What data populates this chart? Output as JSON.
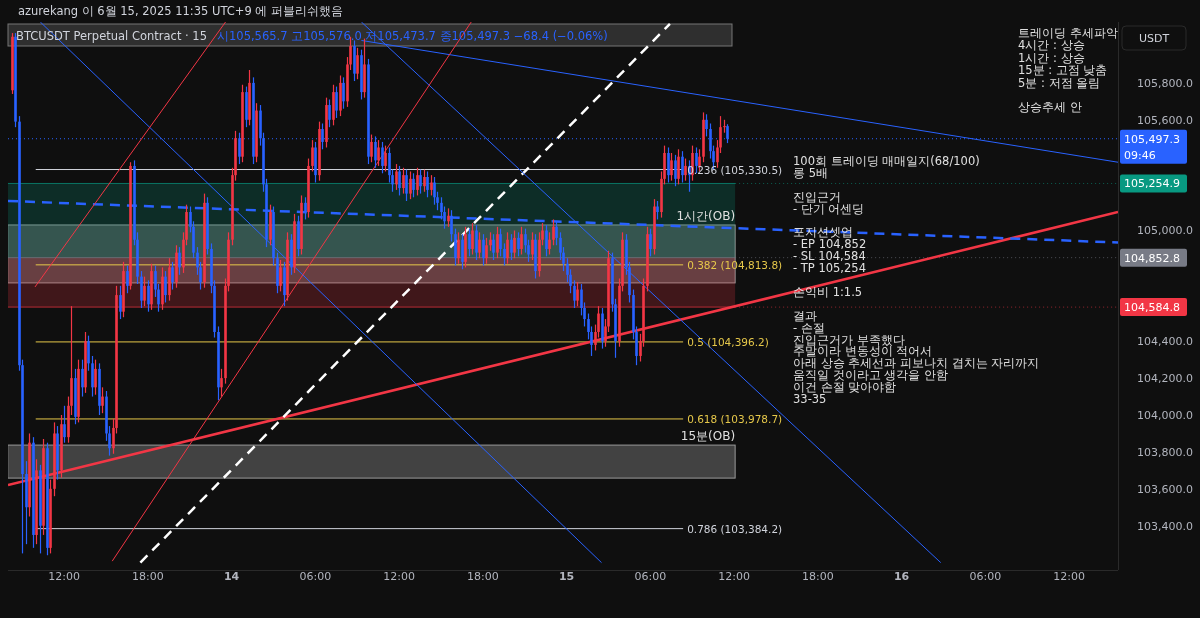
{
  "chart_data": {
    "type": "candlestick",
    "title": "BTCUSDT Perpetual Contract · 15",
    "subtitle": "시105,565.7 고105,576.0 저105,473.7 종105,497.3 −68.4 (−0.06%)",
    "ylabel": "USDT",
    "xlim": [
      "2025-06-13T07:59",
      "2025-06-16T15:30"
    ],
    "ylim": [
      103160,
      106130
    ],
    "xticks": [
      {
        "value": "2025-06-13T12:00",
        "label": "12:00"
      },
      {
        "value": "2025-06-13T18:00",
        "label": "18:00"
      },
      {
        "value": "2025-06-14T00:00",
        "label": "14"
      },
      {
        "value": "2025-06-14T06:00",
        "label": "06:00"
      },
      {
        "value": "2025-06-14T12:00",
        "label": "12:00"
      },
      {
        "value": "2025-06-14T18:00",
        "label": "18:00"
      },
      {
        "value": "2025-06-15T00:00",
        "label": "15"
      },
      {
        "value": "2025-06-15T06:00",
        "label": "06:00"
      },
      {
        "value": "2025-06-15T12:00",
        "label": "12:00"
      },
      {
        "value": "2025-06-15T18:00",
        "label": "18:00"
      },
      {
        "value": "2025-06-16T00:00",
        "label": "16"
      },
      {
        "value": "2025-06-16T06:00",
        "label": "06:00"
      },
      {
        "value": "2025-06-16T12:00",
        "label": "12:00"
      }
    ],
    "yticks": [
      {
        "value": 103400,
        "label": "103,400.0"
      },
      {
        "value": 103600,
        "label": "103,600.0"
      },
      {
        "value": 103800,
        "label": "103,800.0"
      },
      {
        "value": 104000,
        "label": "104,000.0"
      },
      {
        "value": 104200,
        "label": "104,200.0"
      },
      {
        "value": 104400,
        "label": "104,400.0"
      },
      {
        "value": 105000,
        "label": "105,000.0"
      },
      {
        "value": 105600,
        "label": "105,600.0"
      },
      {
        "value": 105800,
        "label": "105,800.0"
      }
    ],
    "x": [
      "2025-06-13T08:15",
      "2025-06-13T08:30",
      "2025-06-13T08:45",
      "2025-06-13T09:00",
      "2025-06-13T09:15",
      "2025-06-13T09:30",
      "2025-06-13T09:45",
      "2025-06-13T10:00",
      "2025-06-13T10:15",
      "2025-06-13T10:30",
      "2025-06-13T10:45",
      "2025-06-13T11:00",
      "2025-06-13T11:15",
      "2025-06-13T11:30",
      "2025-06-13T11:45",
      "2025-06-13T12:00",
      "2025-06-13T12:15",
      "2025-06-13T12:30",
      "2025-06-13T12:45",
      "2025-06-13T13:00",
      "2025-06-13T13:15",
      "2025-06-13T13:30",
      "2025-06-13T13:45",
      "2025-06-13T14:00",
      "2025-06-13T14:15",
      "2025-06-13T14:30",
      "2025-06-13T14:45",
      "2025-06-13T15:00",
      "2025-06-13T15:15",
      "2025-06-13T15:30",
      "2025-06-13T15:45",
      "2025-06-13T16:00",
      "2025-06-13T16:15",
      "2025-06-13T16:30",
      "2025-06-13T16:45",
      "2025-06-13T17:00",
      "2025-06-13T17:15",
      "2025-06-13T17:30",
      "2025-06-13T17:45",
      "2025-06-13T18:00",
      "2025-06-13T18:15",
      "2025-06-13T18:30",
      "2025-06-13T18:45",
      "2025-06-13T19:00",
      "2025-06-13T19:15",
      "2025-06-13T19:30",
      "2025-06-13T19:45",
      "2025-06-13T20:00",
      "2025-06-13T20:15",
      "2025-06-13T20:30",
      "2025-06-13T20:45",
      "2025-06-13T21:00",
      "2025-06-13T21:15",
      "2025-06-13T21:30",
      "2025-06-13T21:45",
      "2025-06-13T22:00",
      "2025-06-13T22:15",
      "2025-06-13T22:30",
      "2025-06-13T22:45",
      "2025-06-13T23:00",
      "2025-06-13T23:15",
      "2025-06-13T23:30",
      "2025-06-13T23:45",
      "2025-06-14T00:00",
      "2025-06-14T00:15",
      "2025-06-14T00:30",
      "2025-06-14T00:45",
      "2025-06-14T01:00",
      "2025-06-14T01:15",
      "2025-06-14T01:30",
      "2025-06-14T01:45",
      "2025-06-14T02:00",
      "2025-06-14T02:15",
      "2025-06-14T02:30",
      "2025-06-14T02:45",
      "2025-06-14T03:00",
      "2025-06-14T03:15",
      "2025-06-14T03:30",
      "2025-06-14T03:45",
      "2025-06-14T04:00",
      "2025-06-14T04:15",
      "2025-06-14T04:30",
      "2025-06-14T04:45",
      "2025-06-14T05:00",
      "2025-06-14T05:15",
      "2025-06-14T05:30",
      "2025-06-14T05:45",
      "2025-06-14T06:00",
      "2025-06-14T06:15",
      "2025-06-14T06:30",
      "2025-06-14T06:45",
      "2025-06-14T07:00",
      "2025-06-14T07:15",
      "2025-06-14T07:30",
      "2025-06-14T07:45",
      "2025-06-14T08:00",
      "2025-06-14T08:15",
      "2025-06-14T08:30",
      "2025-06-14T08:45",
      "2025-06-14T09:00",
      "2025-06-14T09:15",
      "2025-06-14T09:30",
      "2025-06-14T09:45",
      "2025-06-14T10:00",
      "2025-06-14T10:15",
      "2025-06-14T10:30",
      "2025-06-14T10:45",
      "2025-06-14T11:00",
      "2025-06-14T11:15",
      "2025-06-14T11:30",
      "2025-06-14T11:45",
      "2025-06-14T12:00",
      "2025-06-14T12:15",
      "2025-06-14T12:30",
      "2025-06-14T12:45",
      "2025-06-14T13:00",
      "2025-06-14T13:15",
      "2025-06-14T13:30",
      "2025-06-14T13:45",
      "2025-06-14T14:00",
      "2025-06-14T14:15",
      "2025-06-14T14:30",
      "2025-06-14T14:45",
      "2025-06-14T15:00",
      "2025-06-14T15:15",
      "2025-06-14T15:30",
      "2025-06-14T15:45",
      "2025-06-14T16:00",
      "2025-06-14T16:15",
      "2025-06-14T16:30",
      "2025-06-14T16:45",
      "2025-06-14T17:00",
      "2025-06-14T17:15",
      "2025-06-14T17:30",
      "2025-06-14T17:45",
      "2025-06-14T18:00",
      "2025-06-14T18:15",
      "2025-06-14T18:30",
      "2025-06-14T18:45",
      "2025-06-14T19:00",
      "2025-06-14T19:15",
      "2025-06-14T19:30",
      "2025-06-14T19:45",
      "2025-06-14T20:00",
      "2025-06-14T20:15",
      "2025-06-14T20:30",
      "2025-06-14T20:45",
      "2025-06-14T21:00",
      "2025-06-14T21:15",
      "2025-06-14T21:30",
      "2025-06-14T21:45",
      "2025-06-14T22:00",
      "2025-06-14T22:15",
      "2025-06-14T22:30",
      "2025-06-14T22:45",
      "2025-06-14T23:00",
      "2025-06-14T23:15",
      "2025-06-14T23:30",
      "2025-06-14T23:45",
      "2025-06-15T00:00",
      "2025-06-15T00:15",
      "2025-06-15T00:30",
      "2025-06-15T00:45",
      "2025-06-15T01:00",
      "2025-06-15T01:15",
      "2025-06-15T01:30",
      "2025-06-15T01:45",
      "2025-06-15T02:00",
      "2025-06-15T02:15",
      "2025-06-15T02:30",
      "2025-06-15T02:45",
      "2025-06-15T03:00",
      "2025-06-15T03:15",
      "2025-06-15T03:30",
      "2025-06-15T03:45",
      "2025-06-15T04:00",
      "2025-06-15T04:15",
      "2025-06-15T04:30",
      "2025-06-15T04:45",
      "2025-06-15T05:00",
      "2025-06-15T05:15",
      "2025-06-15T05:30",
      "2025-06-15T05:45",
      "2025-06-15T06:00",
      "2025-06-15T06:15",
      "2025-06-15T06:30",
      "2025-06-15T06:45",
      "2025-06-15T07:00",
      "2025-06-15T07:15",
      "2025-06-15T07:30",
      "2025-06-15T07:45",
      "2025-06-15T08:00",
      "2025-06-15T08:15",
      "2025-06-15T08:30",
      "2025-06-15T08:45",
      "2025-06-15T09:00",
      "2025-06-15T09:15",
      "2025-06-15T09:30",
      "2025-06-15T09:45",
      "2025-06-15T10:00",
      "2025-06-15T10:15",
      "2025-06-15T10:30",
      "2025-06-15T10:45",
      "2025-06-15T11:00",
      "2025-06-15T11:15",
      "2025-06-15T11:30"
    ],
    "ohlc": [
      [
        105760,
        106070,
        105740,
        106050
      ],
      [
        106050,
        106070,
        105560,
        105590
      ],
      [
        105590,
        105620,
        104240,
        104270
      ],
      [
        104270,
        104300,
        103250,
        103680
      ],
      [
        103680,
        103750,
        103300,
        103500
      ],
      [
        103500,
        103900,
        103450,
        103850
      ],
      [
        103850,
        103880,
        103280,
        103350
      ],
      [
        103350,
        103760,
        103300,
        103700
      ],
      [
        103700,
        103730,
        103250,
        103400
      ],
      [
        103400,
        103870,
        103350,
        103820
      ],
      [
        103820,
        103850,
        103240,
        103280
      ],
      [
        103280,
        103650,
        103250,
        103600
      ],
      [
        103600,
        103960,
        103560,
        103900
      ],
      [
        103900,
        103940,
        103650,
        103700
      ],
      [
        103700,
        104000,
        103660,
        103950
      ],
      [
        103950,
        104050,
        103850,
        103880
      ],
      [
        103880,
        104100,
        103850,
        104050
      ],
      [
        104050,
        104590,
        104000,
        104200
      ],
      [
        104200,
        104250,
        103950,
        103990
      ],
      [
        103990,
        104300,
        103960,
        104250
      ],
      [
        104250,
        104300,
        104100,
        104150
      ],
      [
        104150,
        104450,
        104120,
        104400
      ],
      [
        104400,
        104430,
        104240,
        104280
      ],
      [
        104280,
        104320,
        104100,
        104150
      ],
      [
        104150,
        104300,
        104110,
        104250
      ],
      [
        104250,
        104280,
        104000,
        104050
      ],
      [
        104050,
        104150,
        104010,
        104100
      ],
      [
        104100,
        104130,
        103860,
        103900
      ],
      [
        103900,
        103940,
        103780,
        103820
      ],
      [
        103820,
        103980,
        103790,
        103930
      ],
      [
        103930,
        104700,
        103900,
        104650
      ],
      [
        104650,
        104700,
        104520,
        104560
      ],
      [
        104560,
        104830,
        104530,
        104780
      ],
      [
        104780,
        104810,
        104660,
        104700
      ],
      [
        104700,
        105370,
        104680,
        105350
      ],
      [
        105350,
        105380,
        104920,
        104950
      ],
      [
        104950,
        104990,
        104710,
        104750
      ],
      [
        104750,
        104780,
        104580,
        104620
      ],
      [
        104620,
        104750,
        104590,
        104700
      ],
      [
        104700,
        104730,
        104560,
        104600
      ],
      [
        104600,
        104820,
        104570,
        104780
      ],
      [
        104780,
        104810,
        104640,
        104680
      ],
      [
        104680,
        104710,
        104560,
        104600
      ],
      [
        104600,
        104800,
        104570,
        104750
      ],
      [
        104750,
        104780,
        104610,
        104650
      ],
      [
        104650,
        104850,
        104620,
        104800
      ],
      [
        104800,
        104830,
        104680,
        104720
      ],
      [
        104720,
        104920,
        104690,
        104880
      ],
      [
        104880,
        104910,
        104760,
        104800
      ],
      [
        104800,
        104990,
        104770,
        104950
      ],
      [
        104950,
        105140,
        104920,
        105100
      ],
      [
        105100,
        105130,
        104990,
        105020
      ],
      [
        105020,
        105050,
        104850,
        104880
      ],
      [
        104880,
        104910,
        104760,
        104800
      ],
      [
        104800,
        104830,
        104680,
        104720
      ],
      [
        104720,
        105200,
        104690,
        105150
      ],
      [
        105150,
        105180,
        104870,
        104900
      ],
      [
        104900,
        104930,
        104660,
        104700
      ],
      [
        104700,
        104730,
        104420,
        104450
      ],
      [
        104450,
        104480,
        104080,
        104150
      ],
      [
        104150,
        104250,
        104100,
        104200
      ],
      [
        104200,
        104740,
        104170,
        104700
      ],
      [
        104700,
        104990,
        104670,
        104950
      ],
      [
        104950,
        105340,
        104920,
        105300
      ],
      [
        105300,
        105540,
        105270,
        105500
      ],
      [
        105500,
        105530,
        105360,
        105400
      ],
      [
        105400,
        105790,
        105370,
        105750
      ],
      [
        105750,
        105780,
        105560,
        105600
      ],
      [
        105600,
        105870,
        105570,
        105800
      ],
      [
        105800,
        105830,
        105360,
        105400
      ],
      [
        105400,
        105690,
        105370,
        105650
      ],
      [
        105650,
        105680,
        105460,
        105500
      ],
      [
        105500,
        105530,
        105210,
        105250
      ],
      [
        105250,
        105280,
        104910,
        104950
      ],
      [
        104950,
        105140,
        104920,
        105100
      ],
      [
        105100,
        105130,
        104810,
        104850
      ],
      [
        104850,
        104880,
        104660,
        104700
      ],
      [
        104700,
        104840,
        104670,
        104800
      ],
      [
        104800,
        104830,
        104590,
        104650
      ],
      [
        104650,
        104990,
        104620,
        104950
      ],
      [
        104950,
        104980,
        104760,
        104800
      ],
      [
        104800,
        105090,
        104770,
        105050
      ],
      [
        105050,
        105080,
        104860,
        104900
      ],
      [
        104900,
        105190,
        104870,
        105150
      ],
      [
        105150,
        105180,
        105060,
        105100
      ],
      [
        105100,
        105390,
        105070,
        105350
      ],
      [
        105350,
        105490,
        105320,
        105450
      ],
      [
        105450,
        105480,
        105260,
        105300
      ],
      [
        105300,
        105590,
        105270,
        105550
      ],
      [
        105550,
        105580,
        105440,
        105480
      ],
      [
        105480,
        105720,
        105450,
        105680
      ],
      [
        105680,
        105710,
        105560,
        105600
      ],
      [
        105600,
        105790,
        105570,
        105750
      ],
      [
        105750,
        105780,
        105610,
        105650
      ],
      [
        105650,
        105840,
        105620,
        105800
      ],
      [
        105800,
        105830,
        105660,
        105700
      ],
      [
        105700,
        105940,
        105670,
        105900
      ],
      [
        105900,
        106050,
        105870,
        106000
      ],
      [
        106000,
        106030,
        105810,
        105850
      ],
      [
        105850,
        105990,
        105820,
        105950
      ],
      [
        105950,
        105980,
        105710,
        105750
      ],
      [
        105750,
        106040,
        105720,
        105900
      ],
      [
        105900,
        105930,
        105360,
        105400
      ],
      [
        105400,
        105520,
        105370,
        105480
      ],
      [
        105480,
        105510,
        105340,
        105380
      ],
      [
        105380,
        105490,
        105350,
        105450
      ],
      [
        105450,
        105480,
        105310,
        105350
      ],
      [
        105350,
        105460,
        105320,
        105420
      ],
      [
        105420,
        105450,
        105260,
        105300
      ],
      [
        105300,
        105330,
        105210,
        105250
      ],
      [
        105250,
        105360,
        105220,
        105320
      ],
      [
        105320,
        105350,
        105190,
        105230
      ],
      [
        105230,
        105340,
        105200,
        105300
      ],
      [
        105300,
        105330,
        105160,
        105200
      ],
      [
        105200,
        105320,
        105170,
        105280
      ],
      [
        105280,
        105310,
        105180,
        105220
      ],
      [
        105220,
        105340,
        105190,
        105300
      ],
      [
        105300,
        105330,
        105200,
        105240
      ],
      [
        105240,
        105330,
        105210,
        105290
      ],
      [
        105290,
        105320,
        105180,
        105220
      ],
      [
        105220,
        105300,
        105190,
        105260
      ],
      [
        105260,
        105290,
        105140,
        105180
      ],
      [
        105180,
        105210,
        105110,
        105150
      ],
      [
        105150,
        105180,
        105060,
        105100
      ],
      [
        105100,
        105130,
        105010,
        105050
      ],
      [
        105050,
        105120,
        105020,
        105080
      ],
      [
        105080,
        105110,
        104940,
        104980
      ],
      [
        104980,
        105010,
        104810,
        104850
      ],
      [
        104850,
        104990,
        104820,
        104950
      ],
      [
        104950,
        104980,
        104790,
        104830
      ],
      [
        104830,
        105020,
        104800,
        104980
      ],
      [
        104980,
        105010,
        104860,
        104900
      ],
      [
        104900,
        105040,
        104870,
        105000
      ],
      [
        105000,
        105030,
        104840,
        104880
      ],
      [
        104880,
        104990,
        104850,
        104950
      ],
      [
        104950,
        104980,
        104810,
        104850
      ],
      [
        104850,
        104960,
        104820,
        104920
      ],
      [
        104920,
        104990,
        104890,
        104950
      ],
      [
        104950,
        104980,
        104840,
        104880
      ],
      [
        104880,
        105020,
        104850,
        104980
      ],
      [
        104980,
        105010,
        104860,
        104900
      ],
      [
        104900,
        104930,
        104810,
        104850
      ],
      [
        104850,
        104990,
        104820,
        104950
      ],
      [
        104950,
        104980,
        104840,
        104880
      ],
      [
        104880,
        105000,
        104850,
        104960
      ],
      [
        104960,
        104990,
        104860,
        104900
      ],
      [
        104900,
        105020,
        104870,
        104980
      ],
      [
        104980,
        105010,
        104880,
        104920
      ],
      [
        104920,
        104950,
        104830,
        104870
      ],
      [
        104870,
        104990,
        104840,
        104950
      ],
      [
        104950,
        104980,
        104740,
        104780
      ],
      [
        104780,
        104990,
        104750,
        104950
      ],
      [
        104950,
        105040,
        104920,
        105000
      ],
      [
        105000,
        105030,
        104860,
        104900
      ],
      [
        104900,
        104990,
        104870,
        104950
      ],
      [
        104950,
        105060,
        104920,
        105020
      ],
      [
        105020,
        105050,
        104920,
        104960
      ],
      [
        104960,
        104990,
        104840,
        104880
      ],
      [
        104880,
        104910,
        104780,
        104820
      ],
      [
        104820,
        104850,
        104720,
        104760
      ],
      [
        104760,
        104790,
        104660,
        104700
      ],
      [
        104700,
        104730,
        104580,
        104620
      ],
      [
        104620,
        104720,
        104590,
        104680
      ],
      [
        104680,
        104710,
        104540,
        104580
      ],
      [
        104580,
        104610,
        104480,
        104520
      ],
      [
        104520,
        104550,
        104410,
        104450
      ],
      [
        104450,
        104480,
        104320,
        104380
      ],
      [
        104380,
        104490,
        104350,
        104450
      ],
      [
        104450,
        104590,
        104420,
        104550
      ],
      [
        104550,
        104580,
        104360,
        104400
      ],
      [
        104400,
        104520,
        104370,
        104480
      ],
      [
        104480,
        104890,
        104450,
        104850
      ],
      [
        104850,
        104880,
        104560,
        104600
      ],
      [
        104600,
        104630,
        104310,
        104400
      ],
      [
        104400,
        104740,
        104370,
        104700
      ],
      [
        104700,
        104990,
        104670,
        104950
      ],
      [
        104950,
        104980,
        104760,
        104800
      ],
      [
        104800,
        104830,
        104610,
        104650
      ],
      [
        104650,
        104680,
        104410,
        104450
      ],
      [
        104450,
        104480,
        104270,
        104320
      ],
      [
        104320,
        104440,
        104290,
        104400
      ],
      [
        104400,
        104740,
        104370,
        104700
      ],
      [
        104700,
        105020,
        104670,
        104980
      ],
      [
        104980,
        105010,
        104860,
        104900
      ],
      [
        104900,
        105170,
        104870,
        105130
      ],
      [
        105130,
        105160,
        105060,
        105100
      ],
      [
        105100,
        105320,
        105070,
        105280
      ],
      [
        105280,
        105460,
        105250,
        105420
      ],
      [
        105420,
        105450,
        105260,
        105300
      ],
      [
        105300,
        105420,
        105270,
        105380
      ],
      [
        105380,
        105410,
        105240,
        105280
      ],
      [
        105280,
        105440,
        105250,
        105400
      ],
      [
        105400,
        105430,
        105260,
        105300
      ],
      [
        105300,
        105390,
        105270,
        105350
      ],
      [
        105350,
        105380,
        105210,
        105300
      ],
      [
        105300,
        105460,
        105270,
        105420
      ],
      [
        105420,
        105450,
        105310,
        105350
      ],
      [
        105350,
        105440,
        105320,
        105400
      ],
      [
        105400,
        105640,
        105370,
        105600
      ],
      [
        105600,
        105630,
        105510,
        105550
      ],
      [
        105550,
        105580,
        105390,
        105430
      ],
      [
        105430,
        105460,
        105330,
        105370
      ],
      [
        105370,
        105490,
        105340,
        105450
      ],
      [
        105450,
        105620,
        105420,
        105560
      ],
      [
        105560,
        105600,
        105530,
        105565.7
      ],
      [
        105565.7,
        105576,
        105473.7,
        105497.3
      ]
    ],
    "series": [
      {
        "type": "line",
        "color": "#f23645",
        "line_style": "solid",
        "x": [
          "2025-06-13T07:59",
          "2025-06-16T15:30"
        ],
        "values": [
          103620,
          105100
        ]
      },
      {
        "type": "line",
        "color": "#2962ff",
        "line_style": "dashed",
        "x": [
          "2025-06-13T07:59",
          "2025-06-16T15:30"
        ],
        "values": [
          105160,
          104935
        ]
      },
      {
        "type": "line",
        "color": "#ffffff",
        "line_style": "dashed",
        "x": [
          "2025-06-13T17:28",
          "2025-06-15T07:24"
        ],
        "values": [
          103200,
          106120
        ]
      },
      {
        "type": "line",
        "color": "#2962ff",
        "line_style": "solid",
        "x": [
          "2025-06-14T09:18",
          "2025-06-16T15:30"
        ],
        "values": [
          106030,
          105370
        ]
      },
      {
        "type": "line",
        "color": "#2962ff",
        "line_style": "solid",
        "x": [
          "2025-06-13T10:18",
          "2025-06-15T02:30"
        ],
        "values": [
          106130,
          103200
        ]
      },
      {
        "type": "line",
        "color": "#2962ff",
        "line_style": "solid",
        "x": [
          "2025-06-14T09:18",
          "2025-06-16T02:48"
        ],
        "values": [
          106130,
          103200
        ]
      },
      {
        "type": "line",
        "color": "#f23645",
        "line_style": "solid",
        "x": [
          "2025-06-13T09:55",
          "2025-06-13T23:34"
        ],
        "values": [
          104694,
          106130
        ]
      },
      {
        "type": "line",
        "color": "#f23645",
        "line_style": "solid",
        "x": [
          "2025-06-13T15:27",
          "2025-06-14T17:10"
        ],
        "values": [
          103208,
          106130
        ]
      }
    ],
    "bands": [
      {
        "axis": "y",
        "from": 104716,
        "to": 105030,
        "label": "1시간(OB)",
        "color": "#808080"
      },
      {
        "axis": "y",
        "from": 103658,
        "to": 103837,
        "label": "15분(OB)",
        "color": "#808080"
      },
      {
        "axis": "y",
        "from": 104852.8,
        "to": 105254.9,
        "color": "#089981"
      },
      {
        "axis": "y",
        "from": 104584.8,
        "to": 104852.8,
        "color": "#f23645"
      }
    ],
    "ref_lines": [
      {
        "axis": "y",
        "value": 105330.5,
        "label": "0.236 (105,330.5)",
        "color": "#d1d4dc",
        "line_style": "solid"
      },
      {
        "axis": "y",
        "value": 104813.8,
        "label": "0.382 (104,813.8)",
        "color": "#e6c84a",
        "line_style": "solid"
      },
      {
        "axis": "y",
        "value": 104396.2,
        "label": "0.5 (104,396.2)",
        "color": "#e6c84a",
        "line_style": "solid"
      },
      {
        "axis": "y",
        "value": 103978.7,
        "label": "0.618 (103,978.7)",
        "color": "#e6c84a",
        "line_style": "solid"
      },
      {
        "axis": "y",
        "value": 103384.2,
        "label": "0.786 (103,384.2)",
        "color": "#d1d4dc",
        "line_style": "solid"
      },
      {
        "axis": "y",
        "value": 105497.3,
        "label": "105,497.3\n09:46",
        "color": "#2962ff",
        "line_style": "dotted"
      },
      {
        "axis": "y",
        "value": 105254.9,
        "label": "105,254.9",
        "color": "#089981"
      },
      {
        "axis": "y",
        "value": 104852.8,
        "label": "104,852.8",
        "color": "#787b86"
      },
      {
        "axis": "y",
        "value": 104584.8,
        "label": "104,584.8",
        "color": "#f23645"
      }
    ],
    "annotations": [
      "azurekang 이 6월 15, 2025 11:35 UTC+9 에 퍼블리쉬했음",
      "트레이딩 추세파악\n4시간 : 상승\n1시간 : 상승\n15분 : 고점 낮춤\n5분 : 저점 올림\n\n상승추세 안",
      "100회 트레이딩 매매일지(68/100)\n롱 5배\n\n진입근거\n- 단기 어센딩\n\n포지션셋업\n- EP 104,852\n- SL 104,584\n- TP 105,254\n\n손익비 1:1.5\n\n결과\n- 손절\n진입근거가 부족했다\n주말이라 변동성이 적어서\n아래 상승 추세선과 피보나치 겹치는 자리까지\n움직일 것이라고 생각을 안함\n이건 손절 맞아야함\n33-35"
    ]
  }
}
